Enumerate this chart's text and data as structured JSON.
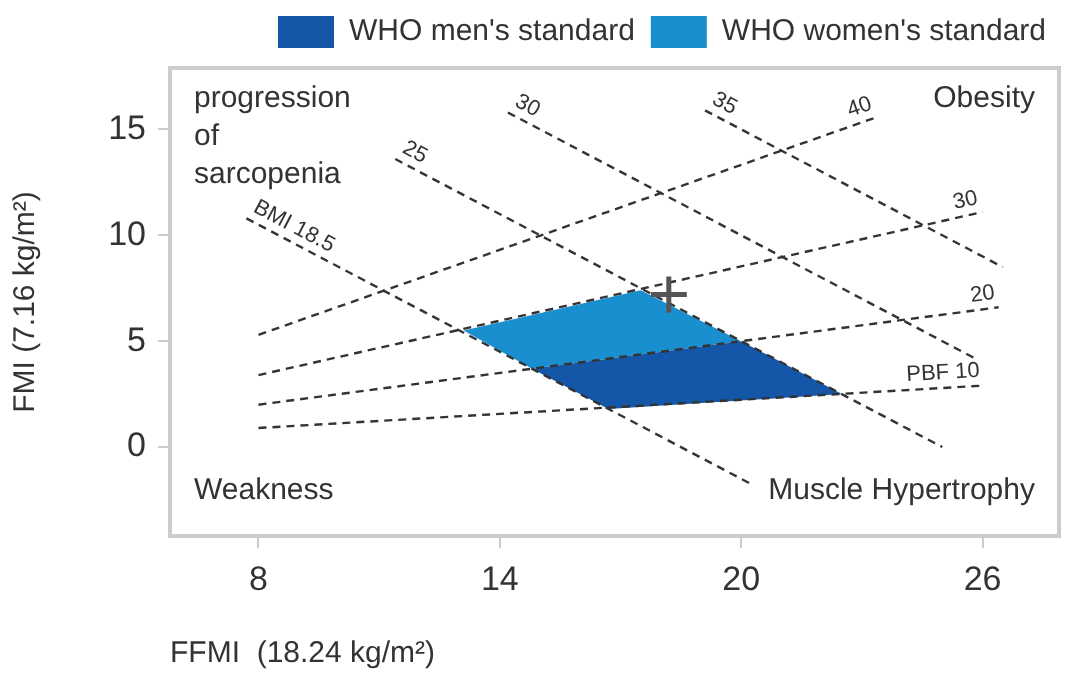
{
  "chart_data": {
    "type": "line",
    "xlabel": "FFMI  (18.24 kg/m²)",
    "ylabel": "FMI (7.16 kg/m²)",
    "xlim": [
      5.8,
      27.9
    ],
    "xticks": [
      8,
      14,
      20,
      26
    ],
    "ylim": [
      -4.2,
      17.9
    ],
    "yticks": [
      0,
      5,
      10,
      15
    ],
    "grid": false,
    "legend": "top right",
    "line_style": "dashed",
    "series": [
      {
        "type": "area",
        "name": "WHO men's standard",
        "color": "#1457a8",
        "x": [
          14.8,
          20,
          22.5,
          16.7,
          14.8
        ],
        "values": [
          3.7,
          5,
          2.5,
          1.8,
          3.7
        ]
      },
      {
        "type": "area",
        "name": "WHO women's standard",
        "color": "#1a8fd0",
        "x": [
          13.1,
          17.5,
          20,
          14.8,
          13.1
        ],
        "values": [
          5.5,
          7.4,
          5,
          3.7,
          5.5
        ]
      },
      {
        "type": "line",
        "name": "BMI 18.5",
        "color": "#333333",
        "x": [
          7.7,
          20.3
        ],
        "values": [
          10.8,
          -1.8
        ]
      },
      {
        "type": "line",
        "name": "25",
        "color": "#333333",
        "x": [
          11.4,
          25
        ],
        "values": [
          13.6,
          0
        ]
      },
      {
        "type": "line",
        "name": "30",
        "color": "#333333",
        "x": [
          14.2,
          25.9
        ],
        "values": [
          15.8,
          4.1
        ]
      },
      {
        "type": "line",
        "name": "35",
        "color": "#333333",
        "x": [
          19.1,
          26.5
        ],
        "values": [
          15.9,
          8.5
        ]
      },
      {
        "type": "line",
        "name": "PBF 10",
        "color": "#333333",
        "x": [
          8,
          26
        ],
        "values": [
          0.9,
          2.9
        ]
      },
      {
        "type": "line",
        "name": "20",
        "color": "#333333",
        "x": [
          8,
          26.4
        ],
        "values": [
          2,
          6.6
        ]
      },
      {
        "type": "line",
        "name": "30",
        "color": "#333333",
        "x": [
          8,
          26
        ],
        "values": [
          3.4,
          11.1
        ]
      },
      {
        "type": "line",
        "name": "40",
        "color": "#333333",
        "x": [
          8,
          23.4
        ],
        "values": [
          5.3,
          15.6
        ]
      },
      {
        "type": "scatter",
        "color": "#555555",
        "marker": "cross",
        "x": [
          18.2
        ],
        "values": [
          7.2
        ]
      }
    ],
    "annotations": [
      "progression of sarcopenia",
      "Obesity",
      "Weakness",
      "Muscle Hypertrophy"
    ]
  }
}
